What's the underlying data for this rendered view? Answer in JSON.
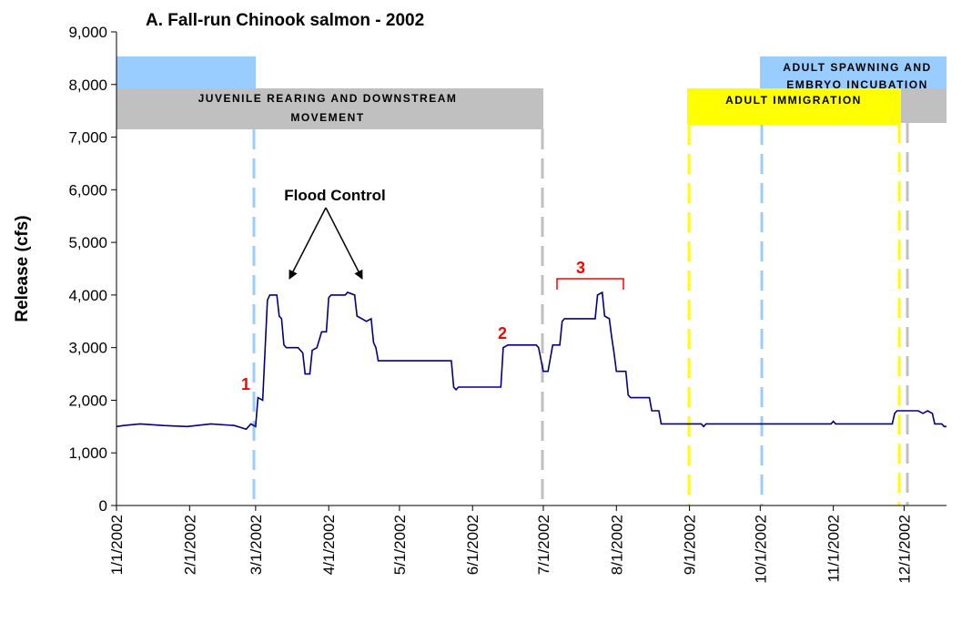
{
  "chart_data": {
    "type": "line",
    "title": "A.  Fall-run Chinook salmon - 2002",
    "y_label": "Release (cfs)",
    "ylim": [
      0,
      9000
    ],
    "yticks": [
      0,
      {
        "value": 1000,
        "label": "1,000"
      },
      {
        "value": 2000,
        "label": "2,000"
      },
      {
        "value": 3000,
        "label": "3,000"
      },
      {
        "value": 4000,
        "label": "4,000"
      },
      {
        "value": 5000,
        "label": "5,000"
      },
      {
        "value": 6000,
        "label": "6,000"
      },
      {
        "value": 7000,
        "label": "7,000"
      },
      {
        "value": 8000,
        "label": "8,000"
      },
      {
        "value": 9000,
        "label": "9,000"
      }
    ],
    "xlim": [
      "2002-01-01",
      "2002-12-19"
    ],
    "xticks": [
      {
        "value": "2002-01-01",
        "label": "1/1/2002"
      },
      {
        "value": "2002-02-01",
        "label": "2/1/2002"
      },
      {
        "value": "2002-03-01",
        "label": "3/1/2002"
      },
      {
        "value": "2002-04-01",
        "label": "4/1/2002"
      },
      {
        "value": "2002-05-01",
        "label": "5/1/2002"
      },
      {
        "value": "2002-06-01",
        "label": "6/1/2002"
      },
      {
        "value": "2002-07-01",
        "label": "7/1/2002"
      },
      {
        "value": "2002-08-01",
        "label": "8/1/2002"
      },
      {
        "value": "2002-09-01",
        "label": "9/1/2002"
      },
      {
        "value": "2002-10-01",
        "label": "10/1/2002"
      },
      {
        "value": "2002-11-01",
        "label": "11/1/2002"
      },
      {
        "value": "2002-12-01",
        "label": "12/1/2002"
      }
    ],
    "color": "#000080",
    "x": [
      "2002-01-01",
      "2002-01-04",
      "2002-01-11",
      "2002-01-21",
      "2002-01-31",
      "2002-02-10",
      "2002-02-20",
      "2002-02-25",
      "2002-02-27",
      "2002-03-01",
      "2002-03-02",
      "2002-03-04",
      "2002-03-06",
      "2002-03-07",
      "2002-03-10",
      "2002-03-11",
      "2002-03-12",
      "2002-03-13",
      "2002-03-14",
      "2002-03-19",
      "2002-03-21",
      "2002-03-22",
      "2002-03-24",
      "2002-03-25",
      "2002-03-27",
      "2002-03-29",
      "2002-03-31",
      "2002-04-01",
      "2002-04-02",
      "2002-04-08",
      "2002-04-09",
      "2002-04-12",
      "2002-04-13",
      "2002-04-17",
      "2002-04-19",
      "2002-04-20",
      "2002-04-21",
      "2002-04-22",
      "2002-05-23",
      "2002-05-24",
      "2002-05-25",
      "2002-05-26",
      "2002-06-13",
      "2002-06-14",
      "2002-06-16",
      "2002-06-28",
      "2002-06-29",
      "2002-07-01",
      "2002-07-03",
      "2002-07-05",
      "2002-07-08",
      "2002-07-09",
      "2002-07-10",
      "2002-07-23",
      "2002-07-24",
      "2002-07-26",
      "2002-07-27",
      "2002-07-29",
      "2002-07-30",
      "2002-07-31",
      "2002-08-01",
      "2002-08-05",
      "2002-08-06",
      "2002-08-07",
      "2002-08-15",
      "2002-08-16",
      "2002-08-19",
      "2002-08-20",
      "2002-09-06",
      "2002-09-07",
      "2002-09-08",
      "2002-10-31",
      "2002-11-01",
      "2002-11-02",
      "2002-11-26",
      "2002-11-27",
      "2002-11-28",
      "2002-12-07",
      "2002-12-09",
      "2002-12-11",
      "2002-12-13",
      "2002-12-14",
      "2002-12-17",
      "2002-12-18",
      "2002-12-19"
    ],
    "values": [
      1500,
      1520,
      1550,
      1520,
      1500,
      1550,
      1520,
      1450,
      1550,
      1500,
      2050,
      2000,
      3900,
      4000,
      4000,
      3600,
      3550,
      3050,
      3000,
      3000,
      2900,
      2500,
      2500,
      2950,
      3000,
      3300,
      3300,
      3950,
      4000,
      4000,
      4050,
      4000,
      3600,
      3500,
      3550,
      3100,
      3000,
      2750,
      2750,
      2250,
      2200,
      2250,
      2250,
      3000,
      3050,
      3050,
      3000,
      2550,
      2550,
      3050,
      3050,
      3500,
      3550,
      3550,
      4000,
      4050,
      3600,
      3550,
      3200,
      2900,
      2550,
      2550,
      2100,
      2050,
      2050,
      1800,
      1800,
      1550,
      1550,
      1500,
      1550,
      1550,
      1600,
      1550,
      1550,
      1750,
      1800,
      1800,
      1750,
      1800,
      1750,
      1550,
      1550,
      1500,
      1500
    ],
    "annotations": {
      "flood_control": "Flood Control",
      "one": "1",
      "two": "2",
      "three": "3"
    },
    "periods": {
      "juvenile": [
        "JUVENILE REARING AND DOWNSTREAM",
        "MOVEMENT"
      ],
      "immigration": "ADULT IMMIGRATION",
      "spawning": [
        "ADULT SPAWNING AND",
        "EMBRYO INCUBATION"
      ]
    }
  }
}
